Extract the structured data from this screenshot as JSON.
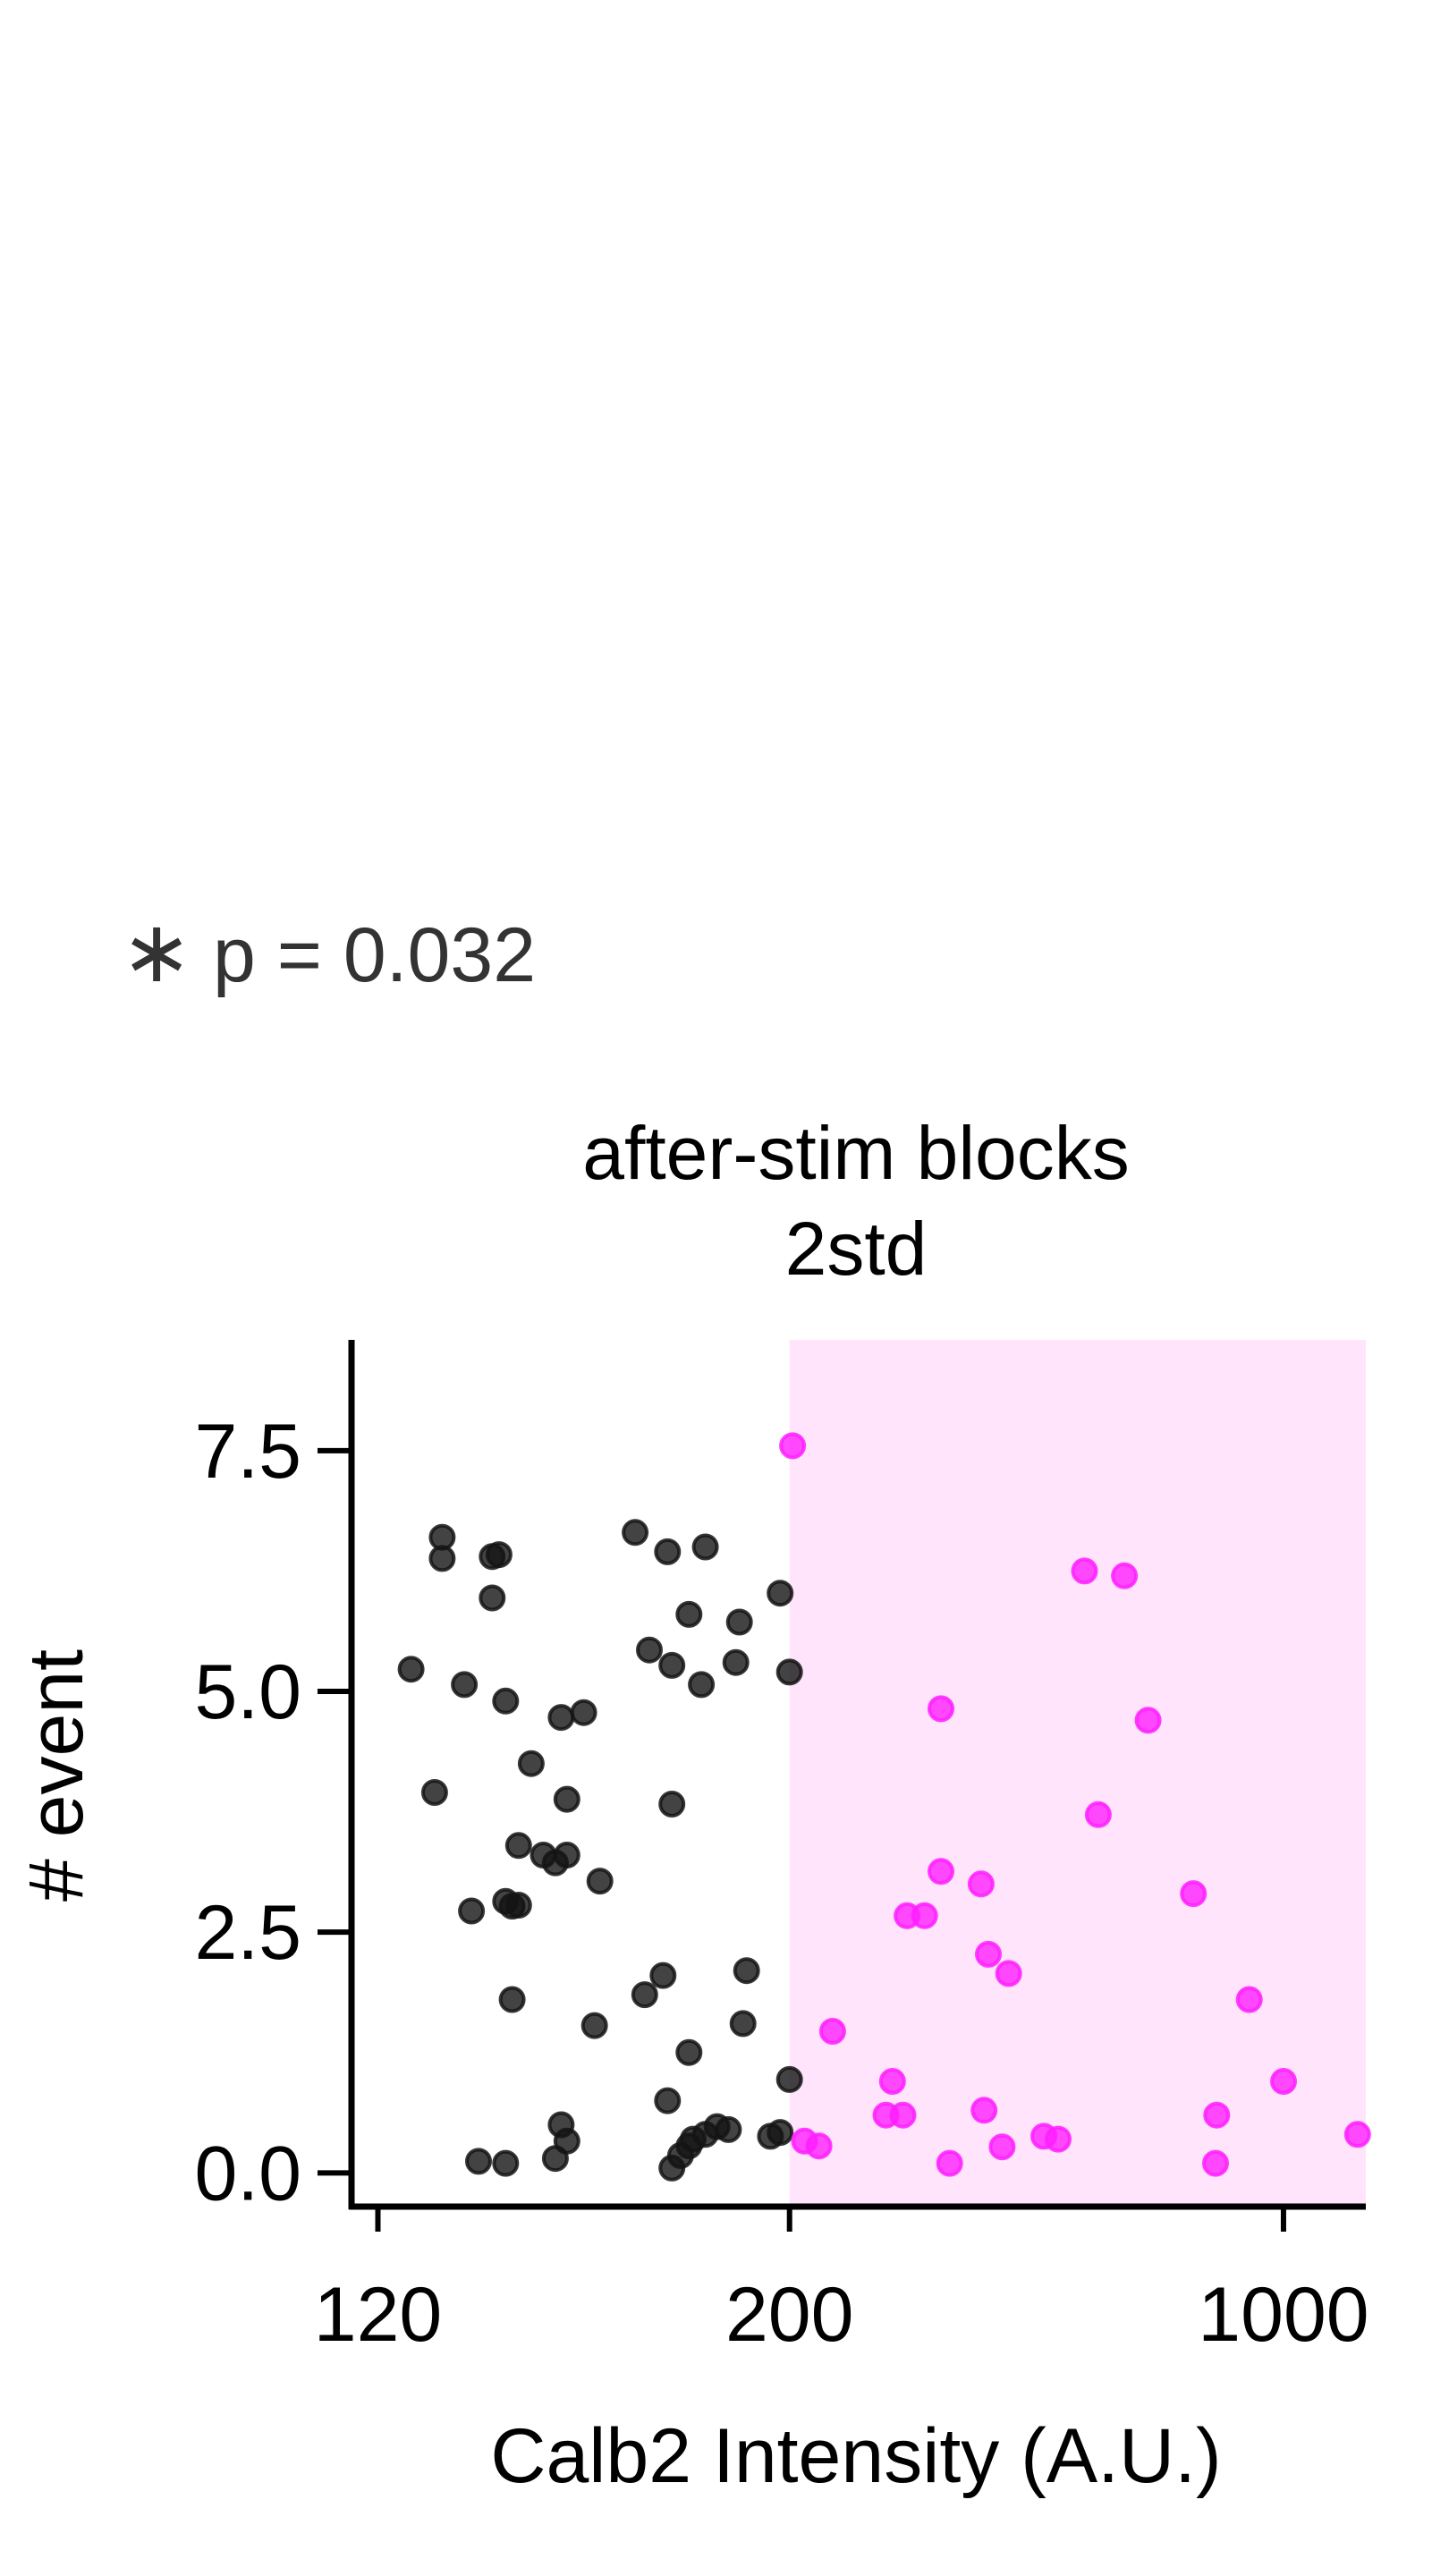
{
  "annotation": {
    "marker": "∗",
    "text": "p = 0.032"
  },
  "chart_data": {
    "type": "scatter",
    "title": "after-stim blocks",
    "subtitle": "2std",
    "xlabel": "Calb2 Intensity (A.U.)",
    "ylabel": "# event",
    "x_scale": "reciprocal",
    "xlim": [
      117,
      3000
    ],
    "ylim": [
      -0.35,
      8.65
    ],
    "x_ticks": [
      120,
      200,
      1000
    ],
    "x_tick_labels": [
      "120",
      "200",
      "1000"
    ],
    "y_ticks": [
      0,
      2.5,
      5,
      7.5
    ],
    "y_tick_labels": [
      "0.0",
      "2.5",
      "5.0",
      "7.5"
    ],
    "threshold_x": 200,
    "highlight_region": {
      "x_from": 200,
      "x_to": 3000,
      "color": "#ffe4fb"
    },
    "grid": false,
    "legend": "none",
    "series": [
      {
        "color": "#141414",
        "points": [
          [
            128,
            6.6
          ],
          [
            128,
            6.38
          ],
          [
            135,
            6.4
          ],
          [
            136,
            6.42
          ],
          [
            135,
            5.97
          ],
          [
            160,
            6.65
          ],
          [
            167,
            6.45
          ],
          [
            176,
            6.5
          ],
          [
            197,
            6.02
          ],
          [
            172,
            5.8
          ],
          [
            185,
            5.72
          ],
          [
            184,
            5.3
          ],
          [
            168,
            5.27
          ],
          [
            163,
            5.43
          ],
          [
            175,
            5.07
          ],
          [
            200,
            5.2
          ],
          [
            124,
            5.23
          ],
          [
            131,
            5.07
          ],
          [
            137,
            4.9
          ],
          [
            146,
            4.73
          ],
          [
            150,
            4.78
          ],
          [
            141,
            4.25
          ],
          [
            127,
            3.95
          ],
          [
            147,
            3.88
          ],
          [
            168,
            3.83
          ],
          [
            139,
            3.4
          ],
          [
            143,
            3.3
          ],
          [
            145,
            3.22
          ],
          [
            147,
            3.3
          ],
          [
            153,
            3.03
          ],
          [
            137,
            2.82
          ],
          [
            138,
            2.77
          ],
          [
            132,
            2.72
          ],
          [
            139,
            2.78
          ],
          [
            187,
            2.1
          ],
          [
            166,
            2.05
          ],
          [
            162,
            1.85
          ],
          [
            138,
            1.8
          ],
          [
            152,
            1.53
          ],
          [
            186,
            1.55
          ],
          [
            172,
            1.25
          ],
          [
            200,
            0.97
          ],
          [
            167,
            0.75
          ],
          [
            146,
            0.5
          ],
          [
            147,
            0.33
          ],
          [
            137,
            0.1
          ],
          [
            145,
            0.15
          ],
          [
            133,
            0.12
          ],
          [
            179,
            0.48
          ],
          [
            182,
            0.45
          ],
          [
            176,
            0.4
          ],
          [
            173,
            0.35
          ],
          [
            172,
            0.28
          ],
          [
            170,
            0.18
          ],
          [
            168,
            0.05
          ],
          [
            197,
            0.42
          ],
          [
            194,
            0.38
          ]
        ]
      },
      {
        "color": "#ff1fff",
        "points": [
          [
            201,
            7.55
          ],
          [
            383,
            6.25
          ],
          [
            437,
            6.2
          ],
          [
            265,
            4.82
          ],
          [
            477,
            4.7
          ],
          [
            400,
            3.72
          ],
          [
            265,
            3.13
          ],
          [
            290,
            3.0
          ],
          [
            578,
            2.9
          ],
          [
            247,
            2.67
          ],
          [
            256,
            2.67
          ],
          [
            295,
            2.27
          ],
          [
            310,
            2.07
          ],
          [
            215,
            1.47
          ],
          [
            783,
            1.8
          ],
          [
            240,
            0.95
          ],
          [
            1000,
            0.95
          ],
          [
            237,
            0.6
          ],
          [
            245,
            0.6
          ],
          [
            292,
            0.65
          ],
          [
            649,
            0.6
          ],
          [
            645,
            0.1
          ],
          [
            270,
            0.1
          ],
          [
            305,
            0.27
          ],
          [
            340,
            0.38
          ],
          [
            354,
            0.35
          ],
          [
            2500,
            0.4
          ],
          [
            205,
            0.33
          ],
          [
            210,
            0.28
          ]
        ]
      }
    ]
  }
}
